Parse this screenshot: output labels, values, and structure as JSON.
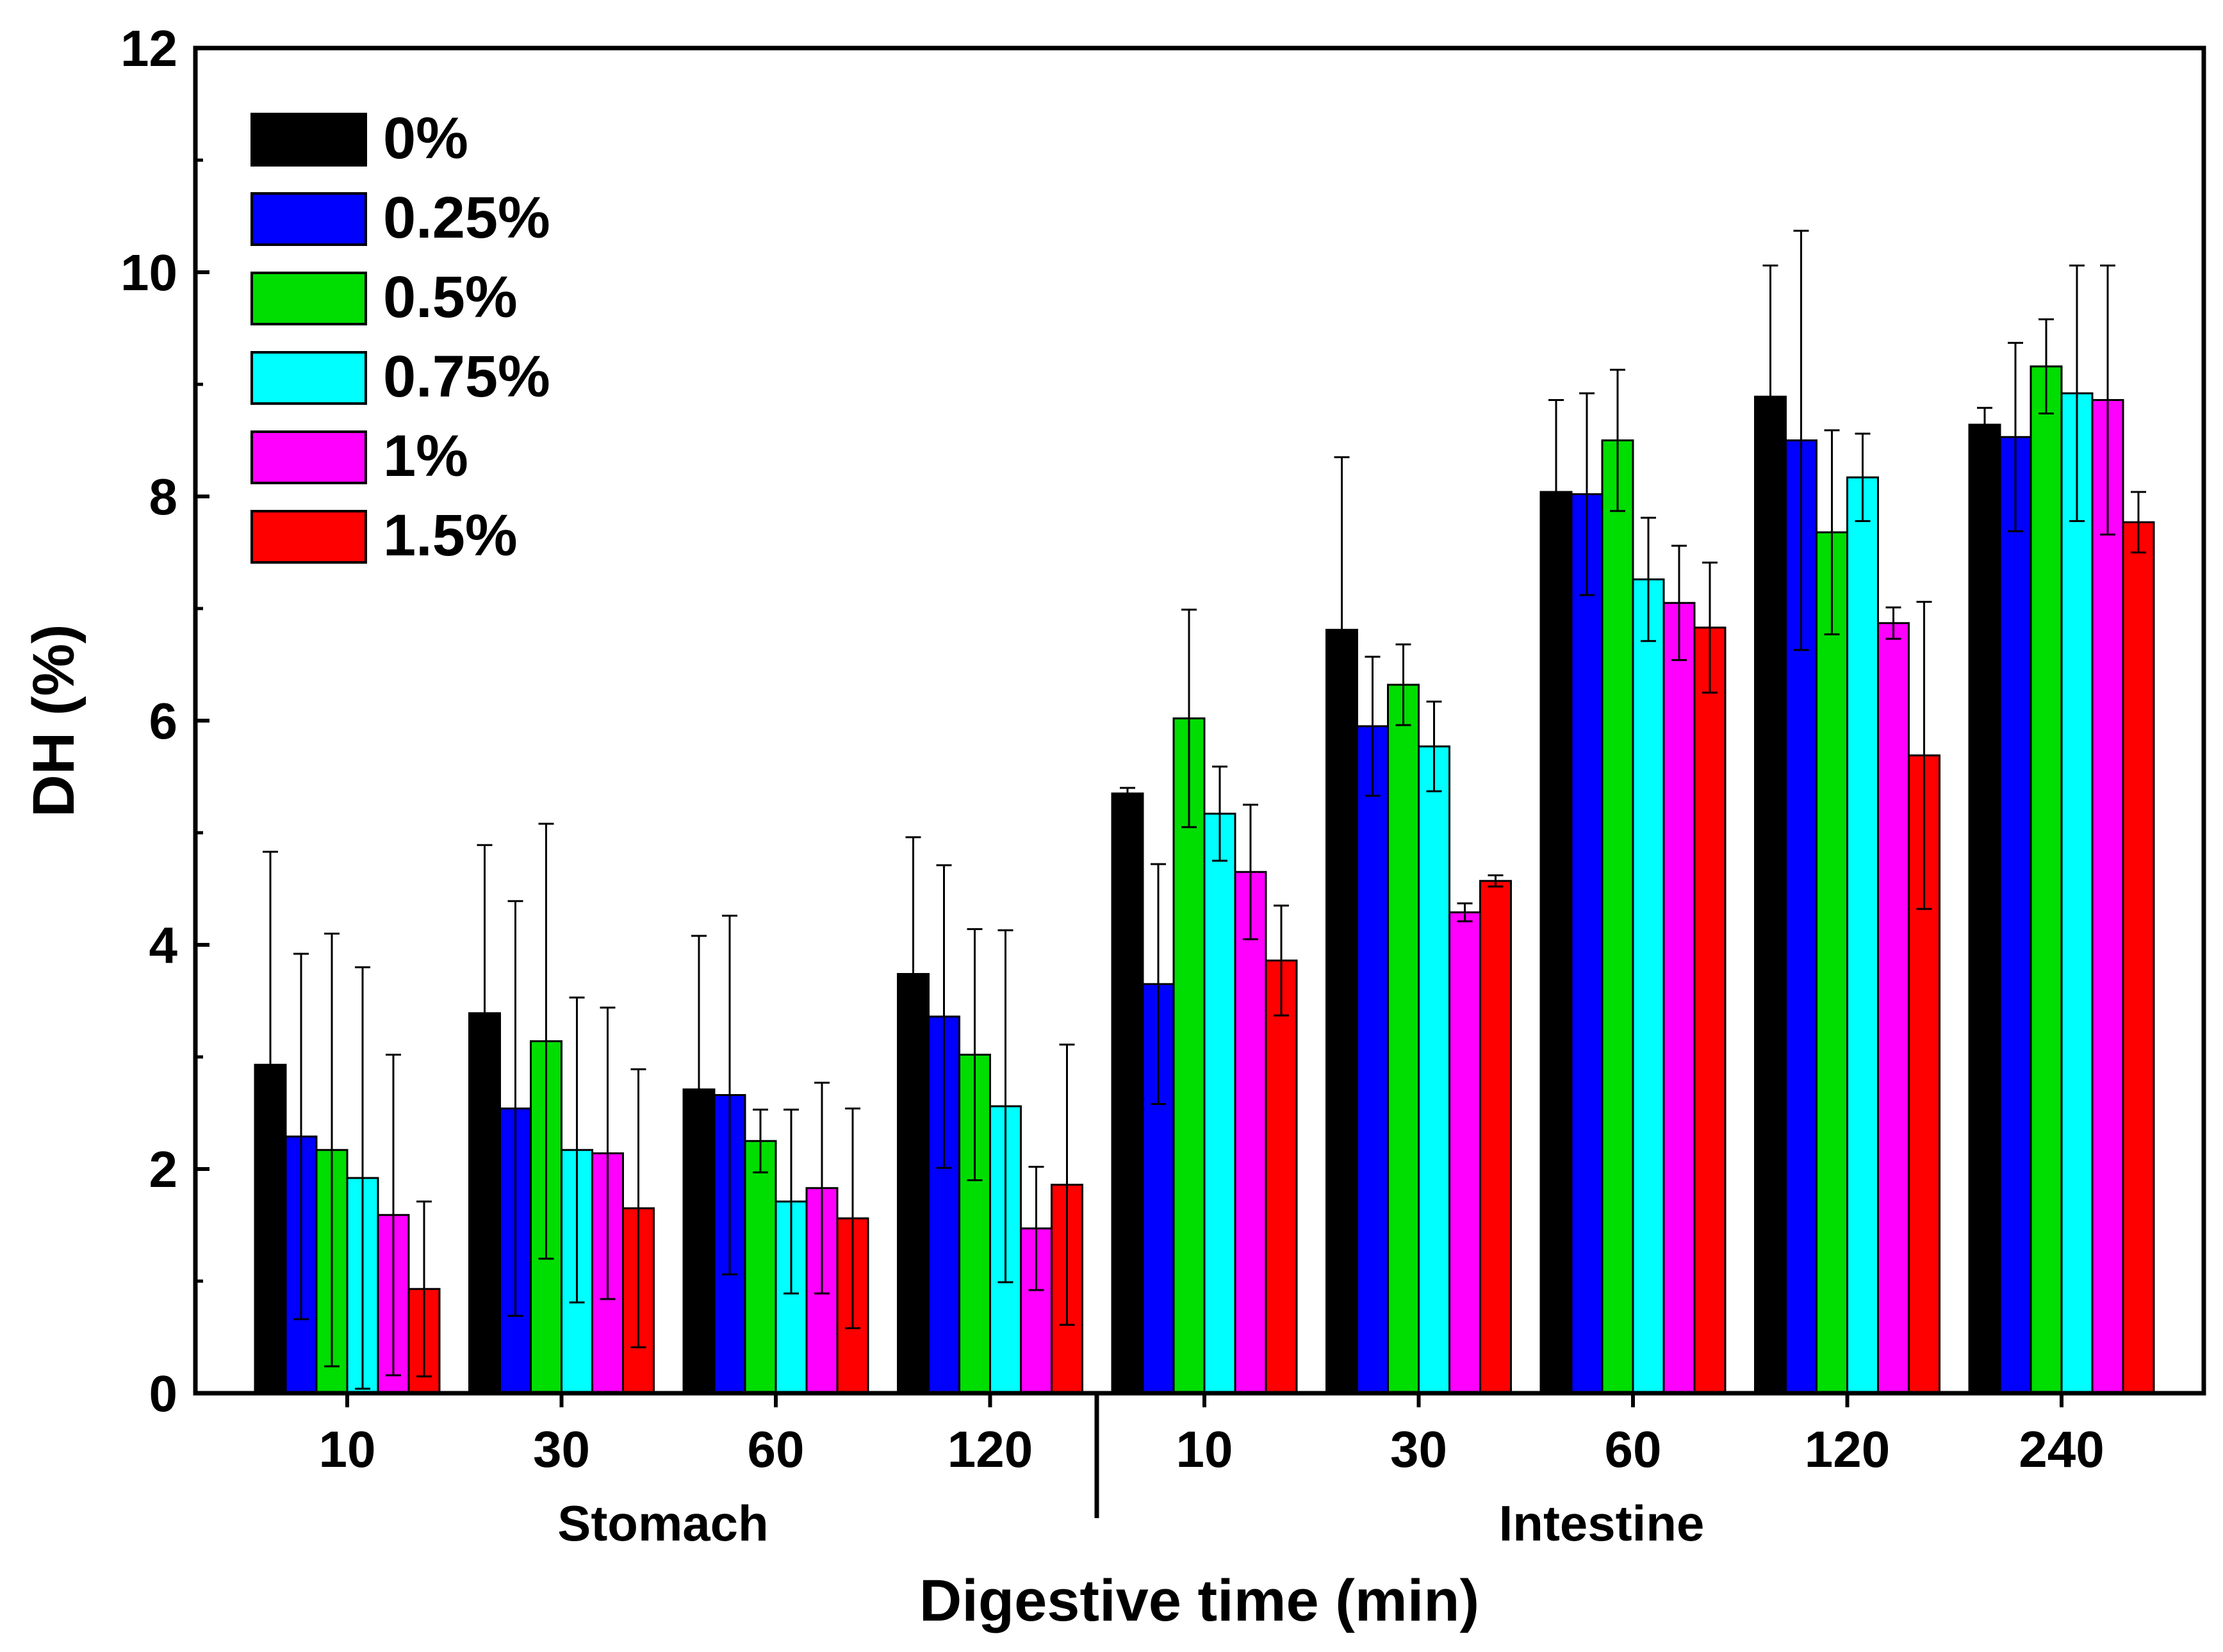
{
  "chart_data": {
    "type": "bar",
    "title": "",
    "xlabel": "Digestive time (min)",
    "ylabel": "DH (%)",
    "ylim": [
      0,
      12
    ],
    "yticks": [
      "0",
      "2",
      "4",
      "6",
      "8",
      "10",
      "12"
    ],
    "groups": [
      {
        "name": "Stomach",
        "categories": [
          "10",
          "30",
          "60",
          "120"
        ]
      },
      {
        "name": "Intestine",
        "categories": [
          "10",
          "30",
          "60",
          "120",
          "240"
        ]
      }
    ],
    "categories": [
      "10",
      "30",
      "60",
      "120",
      "10",
      "30",
      "60",
      "120",
      "240"
    ],
    "legend_position": "top-left",
    "series": [
      {
        "name": "0%",
        "color": "#000000",
        "values": [
          2.93,
          3.39,
          2.71,
          3.74,
          5.35,
          6.81,
          8.04,
          8.89,
          8.64
        ],
        "errors": [
          1.9,
          1.5,
          1.37,
          1.22,
          0.05,
          1.54,
          0.82,
          1.17,
          0.15
        ]
      },
      {
        "name": "0.25%",
        "color": "#0000ff",
        "values": [
          2.29,
          2.54,
          2.66,
          3.36,
          3.65,
          5.95,
          8.02,
          8.5,
          8.53
        ],
        "errors": [
          1.63,
          1.85,
          1.6,
          1.35,
          1.07,
          0.62,
          0.9,
          1.87,
          0.84
        ]
      },
      {
        "name": "0.5%",
        "color": "#00dd00",
        "values": [
          2.17,
          3.14,
          2.25,
          3.02,
          6.02,
          6.32,
          8.5,
          7.68,
          9.16
        ],
        "errors": [
          1.93,
          1.94,
          0.28,
          1.12,
          0.97,
          0.36,
          0.63,
          0.91,
          0.42
        ]
      },
      {
        "name": "0.75%",
        "color": "#00ffff",
        "values": [
          1.92,
          2.17,
          1.71,
          2.56,
          5.17,
          5.77,
          7.26,
          8.17,
          8.92
        ],
        "errors": [
          1.88,
          1.36,
          0.82,
          1.57,
          0.42,
          0.4,
          0.55,
          0.39,
          1.14
        ]
      },
      {
        "name": "1%",
        "color": "#ff00ff",
        "values": [
          1.59,
          2.14,
          1.83,
          1.47,
          4.65,
          4.29,
          7.05,
          6.87,
          8.86
        ],
        "errors": [
          1.43,
          1.3,
          0.94,
          0.55,
          0.6,
          0.08,
          0.51,
          0.14,
          1.2
        ]
      },
      {
        "name": "1.5%",
        "color": "#ff0000",
        "values": [
          0.93,
          1.65,
          1.56,
          1.86,
          3.86,
          4.57,
          6.83,
          5.69,
          7.77
        ],
        "errors": [
          0.78,
          1.24,
          0.98,
          1.25,
          0.49,
          0.05,
          0.58,
          1.37,
          0.27
        ]
      }
    ]
  }
}
